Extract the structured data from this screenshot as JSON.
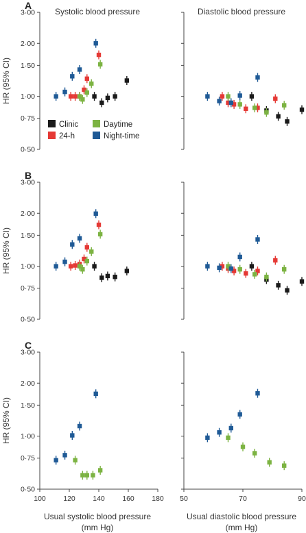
{
  "titles": {
    "left": "Systolic blood pressure",
    "right": "Diastolic blood pressure"
  },
  "panel_labels": [
    "A",
    "B",
    "C"
  ],
  "y_label": "HR (95% CI)",
  "y_ticks": [
    {
      "value": 0.5,
      "label": "0·50"
    },
    {
      "value": 0.75,
      "label": "0·75"
    },
    {
      "value": 1.0,
      "label": "1·00"
    },
    {
      "value": 1.5,
      "label": "1·50"
    },
    {
      "value": 2.0,
      "label": "2·00"
    },
    {
      "value": 3.0,
      "label": "3·00"
    }
  ],
  "x_axes": {
    "systolic": {
      "label_line1": "Usual systolic blood pressure",
      "label_line2": "(mm Hg)",
      "range": [
        100,
        180
      ],
      "ticks": [
        100,
        120,
        140,
        160,
        180
      ]
    },
    "diastolic": {
      "label_line1": "Usual diastolic blood pressure",
      "label_line2": "(mm Hg)",
      "range": [
        50,
        90
      ],
      "ticks": [
        50,
        70,
        90
      ]
    }
  },
  "legend": [
    {
      "name": "Clinic",
      "color": "#1a1a1a"
    },
    {
      "name": "Daytime",
      "color": "#7cb342"
    },
    {
      "name": "24-h",
      "color": "#e53935"
    },
    {
      "name": "Night-time",
      "color": "#1f5a96"
    }
  ],
  "chart_data": [
    {
      "type": "scatter",
      "panel": "A",
      "measure": "systolic",
      "y_scale": "log",
      "ylim": [
        0.5,
        3.0
      ],
      "xlim": [
        100,
        180
      ],
      "series": [
        {
          "name": "Clinic",
          "color": "#1a1a1a",
          "points": [
            [
              137,
              1.0
            ],
            [
              142,
              0.92
            ],
            [
              146,
              0.98
            ],
            [
              151,
              1.0
            ],
            [
              159,
              1.23
            ]
          ]
        },
        {
          "name": "24-h",
          "color": "#e53935",
          "points": [
            [
              121,
              1.0
            ],
            [
              124,
              1.0
            ],
            [
              127,
              1.0
            ],
            [
              130,
              1.09
            ],
            [
              132,
              1.26
            ],
            [
              140,
              1.72
            ]
          ]
        },
        {
          "name": "Daytime",
          "color": "#7cb342",
          "points": [
            [
              127,
              1.0
            ],
            [
              129,
              0.96
            ],
            [
              132,
              1.05
            ],
            [
              135,
              1.18
            ],
            [
              141,
              1.52
            ]
          ]
        },
        {
          "name": "Night-time",
          "color": "#1f5a96",
          "points": [
            [
              111,
              1.0
            ],
            [
              117,
              1.06
            ],
            [
              122,
              1.3
            ],
            [
              127,
              1.42
            ],
            [
              138,
              2.0
            ]
          ]
        }
      ]
    },
    {
      "type": "scatter",
      "panel": "A",
      "measure": "diastolic",
      "y_scale": "log",
      "ylim": [
        0.5,
        3.0
      ],
      "xlim": [
        50,
        90
      ],
      "series": [
        {
          "name": "Clinic",
          "color": "#1a1a1a",
          "points": [
            [
              73,
              1.0
            ],
            [
              78,
              0.83
            ],
            [
              82,
              0.77
            ],
            [
              85,
              0.72
            ],
            [
              90,
              0.84
            ]
          ]
        },
        {
          "name": "24-h",
          "color": "#e53935",
          "points": [
            [
              63,
              1.0
            ],
            [
              65,
              0.92
            ],
            [
              67,
              0.9
            ],
            [
              71,
              0.85
            ],
            [
              75,
              0.86
            ],
            [
              81,
              0.97
            ]
          ]
        },
        {
          "name": "Daytime",
          "color": "#7cb342",
          "points": [
            [
              65,
              1.0
            ],
            [
              69,
              0.9
            ],
            [
              74,
              0.86
            ],
            [
              78,
              0.81
            ],
            [
              84,
              0.89
            ]
          ]
        },
        {
          "name": "Night-time",
          "color": "#1f5a96",
          "points": [
            [
              58,
              1.0
            ],
            [
              62,
              0.94
            ],
            [
              66,
              0.92
            ],
            [
              69,
              1.01
            ],
            [
              75,
              1.28
            ]
          ]
        }
      ]
    },
    {
      "type": "scatter",
      "panel": "B",
      "measure": "systolic",
      "y_scale": "log",
      "ylim": [
        0.5,
        3.0
      ],
      "xlim": [
        100,
        180
      ],
      "series": [
        {
          "name": "Clinic",
          "color": "#1a1a1a",
          "points": [
            [
              137,
              1.0
            ],
            [
              142,
              0.86
            ],
            [
              146,
              0.88
            ],
            [
              151,
              0.87
            ],
            [
              159,
              0.94
            ]
          ]
        },
        {
          "name": "24-h",
          "color": "#e53935",
          "points": [
            [
              121,
              1.0
            ],
            [
              124,
              1.01
            ],
            [
              127,
              1.03
            ],
            [
              130,
              1.1
            ],
            [
              132,
              1.28
            ],
            [
              140,
              1.72
            ]
          ]
        },
        {
          "name": "Daytime",
          "color": "#7cb342",
          "points": [
            [
              127,
              1.0
            ],
            [
              129,
              0.96
            ],
            [
              132,
              1.07
            ],
            [
              135,
              1.21
            ],
            [
              141,
              1.52
            ]
          ]
        },
        {
          "name": "Night-time",
          "color": "#1f5a96",
          "points": [
            [
              111,
              1.0
            ],
            [
              117,
              1.06
            ],
            [
              122,
              1.33
            ],
            [
              127,
              1.44
            ],
            [
              138,
              1.99
            ]
          ]
        }
      ]
    },
    {
      "type": "scatter",
      "panel": "B",
      "measure": "diastolic",
      "y_scale": "log",
      "ylim": [
        0.5,
        3.0
      ],
      "xlim": [
        50,
        90
      ],
      "series": [
        {
          "name": "Clinic",
          "color": "#1a1a1a",
          "points": [
            [
              73,
              1.0
            ],
            [
              78,
              0.84
            ],
            [
              82,
              0.78
            ],
            [
              85,
              0.73
            ],
            [
              90,
              0.82
            ]
          ]
        },
        {
          "name": "24-h",
          "color": "#e53935",
          "points": [
            [
              63,
              1.0
            ],
            [
              65,
              0.97
            ],
            [
              67,
              0.94
            ],
            [
              71,
              0.91
            ],
            [
              75,
              0.94
            ],
            [
              81,
              1.08
            ]
          ]
        },
        {
          "name": "Daytime",
          "color": "#7cb342",
          "points": [
            [
              65,
              1.0
            ],
            [
              69,
              0.96
            ],
            [
              74,
              0.9
            ],
            [
              78,
              0.87
            ],
            [
              84,
              0.96
            ]
          ]
        },
        {
          "name": "Night-time",
          "color": "#1f5a96",
          "points": [
            [
              58,
              1.0
            ],
            [
              62,
              0.98
            ],
            [
              66,
              0.97
            ],
            [
              69,
              1.13
            ],
            [
              75,
              1.42
            ]
          ]
        }
      ]
    },
    {
      "type": "scatter",
      "panel": "C",
      "measure": "systolic",
      "y_scale": "log",
      "ylim": [
        0.5,
        3.0
      ],
      "xlim": [
        100,
        180
      ],
      "series": [
        {
          "name": "Daytime",
          "color": "#7cb342",
          "points": [
            [
              124,
              0.73
            ],
            [
              129,
              0.6
            ],
            [
              132,
              0.6
            ],
            [
              136,
              0.6
            ],
            [
              141,
              0.64
            ]
          ]
        },
        {
          "name": "Night-time",
          "color": "#1f5a96",
          "points": [
            [
              111,
              0.73
            ],
            [
              117,
              0.78
            ],
            [
              122,
              1.01
            ],
            [
              127,
              1.14
            ],
            [
              138,
              1.74
            ]
          ]
        }
      ]
    },
    {
      "type": "scatter",
      "panel": "C",
      "measure": "diastolic",
      "y_scale": "log",
      "ylim": [
        0.5,
        3.0
      ],
      "xlim": [
        50,
        90
      ],
      "series": [
        {
          "name": "Daytime",
          "color": "#7cb342",
          "points": [
            [
              65,
              0.98
            ],
            [
              70,
              0.87
            ],
            [
              74,
              0.8
            ],
            [
              79,
              0.71
            ],
            [
              84,
              0.68
            ]
          ]
        },
        {
          "name": "Night-time",
          "color": "#1f5a96",
          "points": [
            [
              58,
              0.98
            ],
            [
              62,
              1.05
            ],
            [
              66,
              1.11
            ],
            [
              69,
              1.33
            ],
            [
              75,
              1.75
            ]
          ]
        }
      ]
    }
  ]
}
